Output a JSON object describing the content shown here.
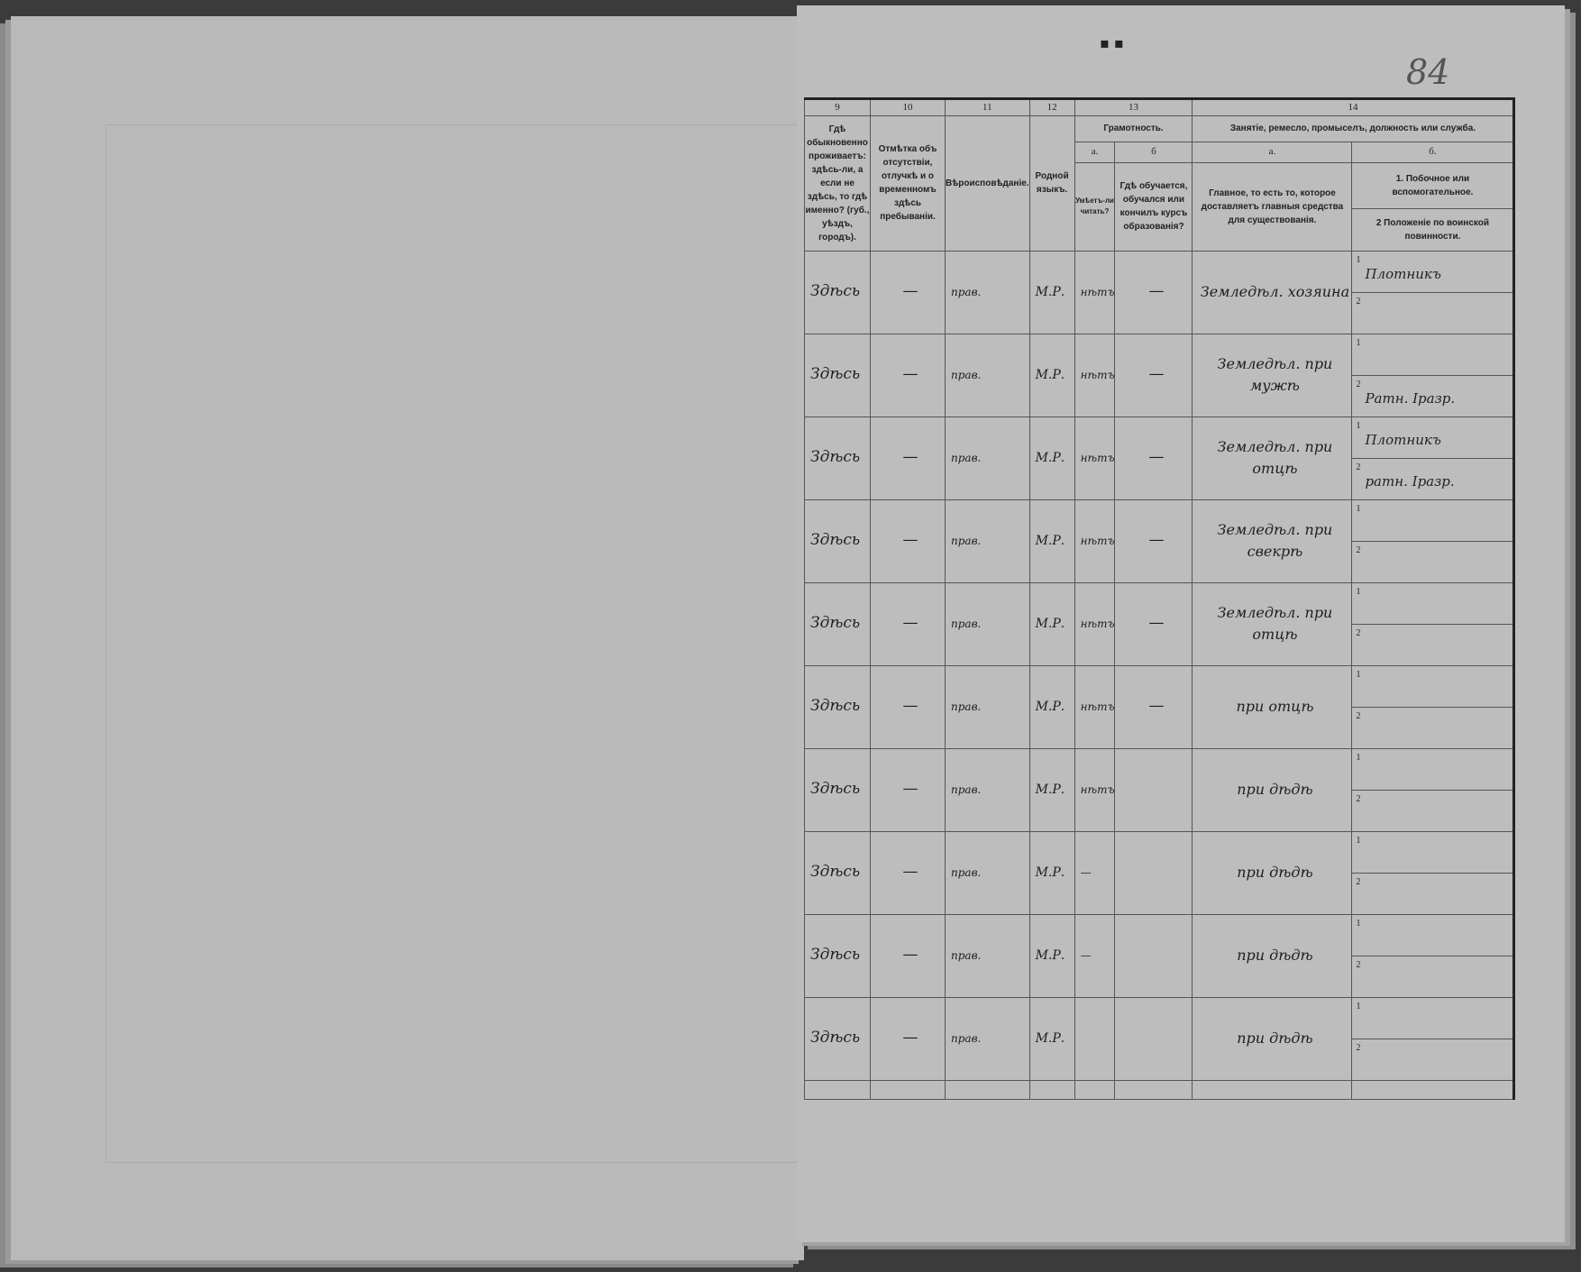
{
  "page_number": "84",
  "header": {
    "col_numbers": [
      "9",
      "10",
      "11",
      "12",
      "13",
      "14"
    ],
    "col9": "Гдѣ обыкновенно проживаетъ: здѣсь-ли, а если не здѣсь, то гдѣ именно? (губ., уѣздъ, городъ).",
    "col10": "Отмѣтка объ отсутствіи, отлучкѣ и о временномъ здѣсь пребываніи.",
    "col11": "Вѣроисповѣданіе.",
    "col12": "Родной языкъ.",
    "col13": "Грамотность.",
    "col13a_letter": "а.",
    "col13b_letter": "б",
    "col13a": "Умѣетъ-ли читать?",
    "col13b": "Гдѣ обучается, обучался или кончилъ курсъ образованія?",
    "col14": "Занятіе, ремесло, промыселъ, должность или служба.",
    "col14a_letter": "а.",
    "col14b_letter": "б.",
    "col14a": "Главное, то есть то, которое доставляетъ главныя средства для существованія.",
    "col14b1": "1. Побочное или вспомогательное.",
    "col14b2": "2 Положеніе по воинской повинности."
  },
  "rows": [
    {
      "residence": "Здѣсь",
      "absence": "—",
      "religion": "прав.",
      "language": "М.Р.",
      "literate": "нѣтъ",
      "school": "—",
      "main": "Земледѣл. хозяина",
      "side1": "Плотникъ",
      "side2": ""
    },
    {
      "residence": "Здѣсь",
      "absence": "—",
      "religion": "прав.",
      "language": "М.Р.",
      "literate": "нѣтъ",
      "school": "—",
      "main": "Земледѣл. при мужѣ",
      "side1": "",
      "side2": "Ратн. Iразр."
    },
    {
      "residence": "Здѣсь",
      "absence": "—",
      "religion": "прав.",
      "language": "М.Р.",
      "literate": "нѣтъ",
      "school": "—",
      "main": "Земледѣл. при отцѣ",
      "side1": "Плотникъ",
      "side2": "ратн. Iразр."
    },
    {
      "residence": "Здѣсь",
      "absence": "—",
      "religion": "прав.",
      "language": "М.Р.",
      "literate": "нѣтъ",
      "school": "—",
      "main": "Земледѣл. при свекрѣ",
      "side1": "",
      "side2": ""
    },
    {
      "residence": "Здѣсь",
      "absence": "—",
      "religion": "прав.",
      "language": "М.Р.",
      "literate": "нѣтъ",
      "school": "—",
      "main": "Земледѣл. при отцѣ",
      "side1": "",
      "side2": ""
    },
    {
      "residence": "Здѣсь",
      "absence": "—",
      "religion": "прав.",
      "language": "М.Р.",
      "literate": "нѣтъ",
      "school": "—",
      "main": "при отцѣ",
      "side1": "",
      "side2": ""
    },
    {
      "residence": "Здѣсь",
      "absence": "—",
      "religion": "прав.",
      "language": "М.Р.",
      "literate": "нѣтъ",
      "school": "",
      "main": "при дѣдѣ",
      "side1": "",
      "side2": ""
    },
    {
      "residence": "Здѣсь",
      "absence": "—",
      "religion": "прав.",
      "language": "М.Р.",
      "literate": "—",
      "school": "",
      "main": "при дѣдѣ",
      "side1": "",
      "side2": ""
    },
    {
      "residence": "Здѣсь",
      "absence": "—",
      "religion": "прав.",
      "language": "М.Р.",
      "literate": "—",
      "school": "",
      "main": "при дѣдѣ",
      "side1": "",
      "side2": ""
    },
    {
      "residence": "Здѣсь",
      "absence": "—",
      "religion": "прав.",
      "language": "М.Р.",
      "literate": "",
      "school": "",
      "main": "при дѣдѣ",
      "side1": "",
      "side2": ""
    }
  ],
  "sub_labels": [
    "1",
    "2"
  ]
}
